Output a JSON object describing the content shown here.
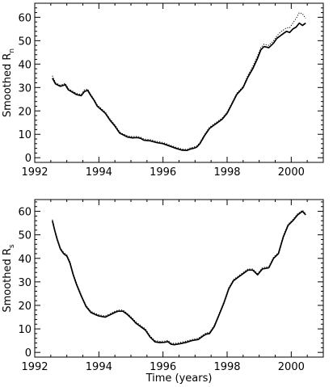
{
  "chart_data": [
    {
      "type": "line",
      "ylabel": "Smoothed R",
      "ylabel_subscript": "n",
      "xlabel": "",
      "xlim": [
        1992,
        2001
      ],
      "ylim": [
        -2,
        66
      ],
      "xticks": [
        1992,
        1994,
        1996,
        1998,
        2000
      ],
      "yticks": [
        0,
        10,
        20,
        30,
        40,
        50,
        60
      ],
      "series": [
        {
          "style": "solid",
          "x": [
            1992.55,
            1992.65,
            1992.8,
            1992.95,
            1993.05,
            1993.15,
            1993.3,
            1993.45,
            1993.55,
            1993.65,
            1993.75,
            1993.85,
            1993.95,
            1994.05,
            1994.2,
            1994.35,
            1994.5,
            1994.65,
            1994.75,
            1994.9,
            1995.05,
            1995.2,
            1995.3,
            1995.4,
            1995.6,
            1995.8,
            1996.0,
            1996.2,
            1996.4,
            1996.6,
            1996.75,
            1996.85,
            1996.95,
            1997.05,
            1997.15,
            1997.3,
            1997.45,
            1997.55,
            1997.7,
            1997.85,
            1998.0,
            1998.15,
            1998.3,
            1998.5,
            1998.65,
            1998.8,
            1998.95,
            1999.05,
            1999.15,
            1999.3,
            1999.45,
            1999.55,
            1999.65,
            1999.75,
            1999.85,
            1999.95,
            2000.05,
            2000.15,
            2000.25,
            2000.35,
            2000.45
          ],
          "y": [
            34,
            31.5,
            30.5,
            31.2,
            29,
            28.2,
            27,
            26.5,
            28.3,
            28.8,
            26.5,
            24.5,
            22,
            20.8,
            19,
            16,
            13.5,
            10.5,
            9.8,
            8.8,
            8.5,
            8.6,
            8.3,
            7.5,
            7.2,
            6.5,
            6,
            5,
            4,
            3.2,
            3.1,
            3.7,
            4,
            4.5,
            6,
            9.5,
            12.5,
            13.5,
            15,
            16.5,
            19,
            23,
            27,
            30,
            34.5,
            38,
            42.5,
            46,
            47.5,
            47,
            49,
            51,
            52,
            53,
            54,
            53.5,
            55,
            55.8,
            57.5,
            56.5,
            57.5
          ]
        },
        {
          "style": "dotted",
          "x": [
            1992.55,
            1992.65,
            1992.8,
            1992.95,
            1993.05,
            1993.15,
            1993.3,
            1993.45,
            1993.55,
            1993.65,
            1993.75,
            1993.85,
            1993.95,
            1994.05,
            1994.2,
            1994.35,
            1994.5,
            1994.65,
            1994.75,
            1994.9,
            1995.05,
            1995.2,
            1995.3,
            1995.4,
            1995.6,
            1995.8,
            1996.0,
            1996.2,
            1996.4,
            1996.6,
            1996.75,
            1996.85,
            1996.95,
            1997.05,
            1997.15,
            1997.3,
            1997.45,
            1997.55,
            1997.7,
            1997.85,
            1998.0,
            1998.15,
            1998.3,
            1998.5,
            1998.65,
            1998.8,
            1998.95,
            1999.05,
            1999.15,
            1999.3,
            1999.45,
            1999.55,
            1999.65,
            1999.75,
            1999.85,
            1999.95,
            2000.05,
            2000.15,
            2000.25,
            2000.35,
            2000.45
          ],
          "y": [
            35,
            32,
            31,
            31.8,
            29.5,
            28.7,
            27.5,
            27,
            29,
            29.3,
            27,
            25,
            22.5,
            21.3,
            19.5,
            16.5,
            14,
            11,
            10.2,
            9.3,
            9,
            9.1,
            8.8,
            8,
            7.7,
            7,
            6.5,
            5.5,
            4.5,
            3.7,
            3.6,
            4.2,
            4.5,
            5,
            6.5,
            10,
            13,
            14,
            15.5,
            17,
            19.5,
            23.5,
            27.5,
            30.5,
            35.3,
            39,
            43.5,
            47,
            48.5,
            48,
            50,
            52,
            53.5,
            54.5,
            55.5,
            55.5,
            57.5,
            59.5,
            62,
            61.5,
            59.5
          ]
        }
      ]
    },
    {
      "type": "line",
      "ylabel": "Smoothed R",
      "ylabel_subscript": "s",
      "xlabel": "Time (years)",
      "xlim": [
        1992,
        2001
      ],
      "ylim": [
        -2,
        65
      ],
      "xticks": [
        1992,
        1994,
        1996,
        1998,
        2000
      ],
      "yticks": [
        0,
        10,
        20,
        30,
        40,
        50,
        60
      ],
      "series": [
        {
          "style": "solid",
          "x": [
            1992.55,
            1992.62,
            1992.7,
            1992.8,
            1992.9,
            1993.0,
            1993.1,
            1993.2,
            1993.3,
            1993.45,
            1993.6,
            1993.75,
            1993.9,
            1994.0,
            1994.2,
            1994.35,
            1994.5,
            1994.6,
            1994.75,
            1994.9,
            1995.05,
            1995.15,
            1995.3,
            1995.45,
            1995.6,
            1995.75,
            1995.9,
            1996.05,
            1996.15,
            1996.25,
            1996.35,
            1996.5,
            1996.7,
            1996.9,
            1997.1,
            1997.25,
            1997.35,
            1997.45,
            1997.6,
            1997.75,
            1997.9,
            1998.05,
            1998.2,
            1998.35,
            1998.5,
            1998.65,
            1998.8,
            1998.95,
            1999.1,
            1999.3,
            1999.45,
            1999.6,
            1999.75,
            1999.9,
            2000.05,
            2000.2,
            2000.35,
            2000.45
          ],
          "y": [
            56,
            52,
            48,
            44,
            42,
            41,
            38,
            33,
            29,
            24,
            19.5,
            17,
            16,
            15.5,
            15,
            16,
            17,
            17.5,
            17.5,
            16,
            14,
            12.5,
            11,
            9.5,
            6.5,
            4.5,
            4.2,
            4.3,
            4.6,
            3.5,
            3.3,
            3.6,
            4.2,
            5,
            5.5,
            7,
            7.8,
            8,
            11,
            16,
            21,
            27,
            30.5,
            32,
            33.5,
            35,
            35,
            33,
            35.5,
            36,
            40,
            42,
            49,
            54,
            56,
            58.5,
            60,
            58.5
          ]
        },
        {
          "style": "dotted",
          "x": [
            1992.55,
            1992.62,
            1992.7,
            1992.8,
            1992.9,
            1993.0,
            1993.1,
            1993.2,
            1993.3,
            1993.45,
            1993.6,
            1993.75,
            1993.9,
            1994.0,
            1994.2,
            1994.35,
            1994.5,
            1994.6,
            1994.75,
            1994.9,
            1995.05,
            1995.15,
            1995.3,
            1995.45,
            1995.6,
            1995.75,
            1995.9,
            1996.05,
            1996.15,
            1996.25,
            1996.35,
            1996.5,
            1996.7,
            1996.9,
            1997.1,
            1997.25,
            1997.35,
            1997.45,
            1997.6,
            1997.75,
            1997.9,
            1998.05,
            1998.2,
            1998.35,
            1998.5,
            1998.65,
            1998.8,
            1998.95,
            1999.1,
            1999.3,
            1999.45,
            1999.6,
            1999.75,
            1999.9,
            2000.05,
            2000.2,
            2000.35,
            2000.45
          ],
          "y": [
            56.5,
            52.5,
            48.5,
            44.5,
            42.5,
            41.5,
            38.5,
            33.5,
            29.5,
            24.5,
            20,
            17.5,
            16.5,
            16,
            15.5,
            16.5,
            17.5,
            18,
            18,
            16.5,
            14.5,
            13,
            11.5,
            10,
            7,
            5,
            4.7,
            4.8,
            5.1,
            4,
            3.8,
            4.1,
            4.7,
            5.5,
            6,
            7.5,
            8.3,
            8.5,
            11.5,
            16.5,
            21.5,
            27.5,
            31,
            32.5,
            34,
            35.5,
            35.5,
            33.5,
            36,
            36.5,
            40.5,
            42.5,
            49.5,
            54.5,
            56.5,
            59,
            60.5,
            59
          ]
        }
      ]
    }
  ]
}
